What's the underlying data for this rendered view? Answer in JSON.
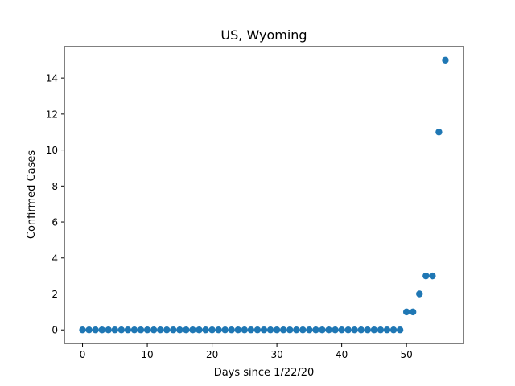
{
  "chart_data": {
    "type": "scatter",
    "title": "US, Wyoming",
    "xlabel": "Days since 1/22/20",
    "ylabel": "Confirmed Cases",
    "xlim": [
      -2.8,
      58.8
    ],
    "ylim": [
      -0.75,
      15.75
    ],
    "xticks": [
      0,
      10,
      20,
      30,
      40,
      50
    ],
    "yticks": [
      0,
      2,
      4,
      6,
      8,
      10,
      12,
      14
    ],
    "grid": false,
    "marker_color": "#1f77b4",
    "x": [
      0,
      1,
      2,
      3,
      4,
      5,
      6,
      7,
      8,
      9,
      10,
      11,
      12,
      13,
      14,
      15,
      16,
      17,
      18,
      19,
      20,
      21,
      22,
      23,
      24,
      25,
      26,
      27,
      28,
      29,
      30,
      31,
      32,
      33,
      34,
      35,
      36,
      37,
      38,
      39,
      40,
      41,
      42,
      43,
      44,
      45,
      46,
      47,
      48,
      49,
      50,
      51,
      52,
      53,
      54,
      55,
      56
    ],
    "y": [
      0,
      0,
      0,
      0,
      0,
      0,
      0,
      0,
      0,
      0,
      0,
      0,
      0,
      0,
      0,
      0,
      0,
      0,
      0,
      0,
      0,
      0,
      0,
      0,
      0,
      0,
      0,
      0,
      0,
      0,
      0,
      0,
      0,
      0,
      0,
      0,
      0,
      0,
      0,
      0,
      0,
      0,
      0,
      0,
      0,
      0,
      0,
      0,
      0,
      0,
      1,
      1,
      2,
      3,
      3,
      11,
      15
    ]
  }
}
